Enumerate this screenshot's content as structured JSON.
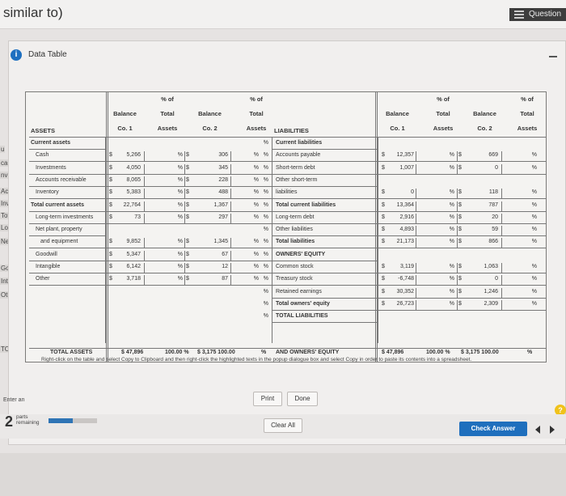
{
  "page": {
    "title": "similar to)",
    "question_label": "Question"
  },
  "side_fragments": [
    "u",
    "ca",
    "nv",
    "Acc",
    "Inv",
    "Tot",
    "Lor",
    "Ne",
    "Go",
    "Inta",
    "Oth",
    "TO"
  ],
  "modal": {
    "title": "Data Table"
  },
  "table": {
    "headers": {
      "balance": "Balance",
      "co1": "Co. 1",
      "co2": "Co. 2",
      "pct_of": "% of",
      "total": "Total",
      "assets": "Assets",
      "assets_title": "ASSETS",
      "liabilities_title": "LIABILITIES"
    },
    "assets": [
      {
        "label": "Current assets",
        "bold": true,
        "indent": 0
      },
      {
        "label": "Cash",
        "indent": 1,
        "c1": "5,266",
        "p1": "%",
        "c2": "306",
        "p2": "%"
      },
      {
        "label": "Investments",
        "indent": 1,
        "c1": "4,050",
        "p1": "%",
        "c2": "345",
        "p2": "%"
      },
      {
        "label": "Accounts receivable",
        "indent": 1,
        "c1": "8,065",
        "p1": "%",
        "c2": "228",
        "p2": "%"
      },
      {
        "label": "Inventory",
        "indent": 1,
        "c1": "5,383",
        "p1": "%",
        "c2": "488",
        "p2": "%"
      },
      {
        "label": "Total current assets",
        "bold": true,
        "indent": 0,
        "c1": "22,764",
        "p1": "%",
        "c2": "1,367",
        "p2": "%"
      },
      {
        "label": "Long-term investments",
        "indent": 1,
        "c1": "73",
        "p1": "%",
        "c2": "297",
        "p2": "%"
      },
      {
        "label": "Net plant, property",
        "indent": 1
      },
      {
        "label": "and equipment",
        "indent": 2,
        "c1": "9,852",
        "p1": "%",
        "c2": "1,345",
        "p2": "%"
      },
      {
        "label": "Goodwill",
        "indent": 1,
        "c1": "5,347",
        "p1": "%",
        "c2": "67",
        "p2": "%"
      },
      {
        "label": "Intangible",
        "indent": 1,
        "c1": "6,142",
        "p1": "%",
        "c2": "12",
        "p2": "%"
      },
      {
        "label": "Other",
        "indent": 1,
        "c1": "3,718",
        "p1": "%",
        "c2": "87",
        "p2": "%"
      }
    ],
    "liabilities": [
      {
        "label": "Current liabilities",
        "bold": true
      },
      {
        "label": "Accounts payable",
        "c1": "12,357",
        "p1": "%",
        "c2": "669",
        "p2": "%"
      },
      {
        "label": "Short-term debt",
        "c1": "1,007",
        "p1": "%",
        "c2": "0",
        "p2": "%"
      },
      {
        "label": "Other short-term",
        "c1": "",
        "p1": "",
        "c2": "",
        "p2": ""
      },
      {
        "label": "liabilities",
        "c1": "0",
        "p1": "%",
        "c2": "118",
        "p2": "%"
      },
      {
        "label": "Total current liabilities",
        "bold": true,
        "c1": "13,364",
        "p1": "%",
        "c2": "787",
        "p2": "%"
      },
      {
        "label": "Long-term debt",
        "c1": "2,916",
        "p1": "%",
        "c2": "20",
        "p2": "%"
      },
      {
        "label": "Other liabilities",
        "c1": "4,893",
        "p1": "%",
        "c2": "59",
        "p2": "%"
      },
      {
        "label": "Total liabilities",
        "bold": true,
        "c1": "21,173",
        "p1": "%",
        "c2": "866",
        "p2": "%"
      },
      {
        "label": "OWNERS' EQUITY",
        "bold": true
      },
      {
        "label": "Common stock",
        "c1": "3,119",
        "p1": "%",
        "c2": "1,063",
        "p2": "%"
      },
      {
        "label": "Treasury stock",
        "c1": "-6,748",
        "p1": "%",
        "c2": "0",
        "p2": "%"
      },
      {
        "label": "Retained earnings",
        "c1": "30,352",
        "p1": "%",
        "c2": "1,246",
        "p2": "%"
      },
      {
        "label": "Total owners' equity",
        "bold": true,
        "c1": "26,723",
        "p1": "%",
        "c2": "2,309",
        "p2": "%"
      },
      {
        "label": "TOTAL LIABILITIES",
        "bold": true
      }
    ],
    "totals": {
      "assets_label": "TOTAL ASSETS",
      "assets_c1": "$ 47,896",
      "assets_p1": "100.00 %",
      "assets_c2": "$   3,175 100.00",
      "assets_p2": "%",
      "liab_label": "AND OWNERS' EQUITY",
      "liab_c1": "$ 47,896",
      "liab_p1": "100.00 %",
      "liab_c2": "$   3,175 100.00",
      "liab_p2": "%"
    },
    "note": "Right-click on the table and select Copy to Clipboard and then right-click the highlighted texts in the popup dialogue box and select Copy in order to paste its contents into a spreadsheet."
  },
  "buttons": {
    "print": "Print",
    "done": "Done",
    "clear_all": "Clear All",
    "check_answer": "Check Answer"
  },
  "footer": {
    "enter_label": "Enter an",
    "parts_count": "2",
    "parts_text": "parts remaining",
    "help": "?",
    "progress": 0.5
  }
}
